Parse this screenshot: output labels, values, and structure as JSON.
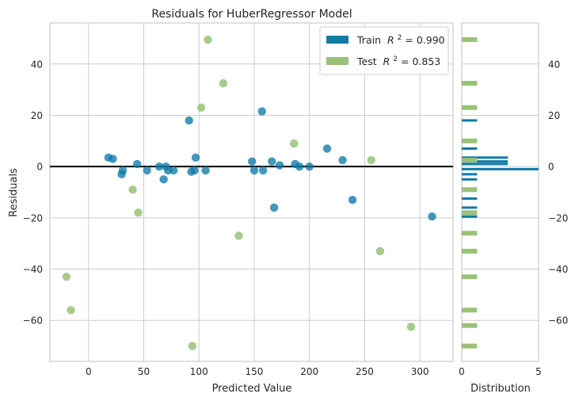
{
  "chart_data": [
    {
      "type": "scatter",
      "title": "Residuals for HuberRegressor Model",
      "xlabel": "Predicted Value",
      "ylabel": "Residuals",
      "xlim": [
        -35,
        330
      ],
      "ylim": [
        -76,
        56
      ],
      "xticks": [
        "0",
        "50",
        "100",
        "150",
        "200",
        "250",
        "300"
      ],
      "xtick_values": [
        0,
        50,
        100,
        150,
        200,
        250,
        300
      ],
      "yticks": [
        "40",
        "20",
        "0",
        "−20",
        "−40",
        "−60"
      ],
      "ytick_values": [
        40,
        20,
        0,
        -20,
        -40,
        -60
      ],
      "grid": true,
      "legend_position": "top-right",
      "zero_line": 0,
      "colors": {
        "train": "#0e7aa8",
        "test": "#99c278",
        "zero_line": "#000000",
        "grid": "#cccccc",
        "axis": "#cccccc"
      },
      "series": [
        {
          "name": "Train",
          "legend_math": "R",
          "legend_sup": "2",
          "legend_value": " = 0.990",
          "color": "#0e7aa8",
          "points": [
            [
              18,
              3.5
            ],
            [
              22,
              3
            ],
            [
              30,
              -3
            ],
            [
              31,
              -1.5
            ],
            [
              44,
              1
            ],
            [
              53,
              -1.5
            ],
            [
              64,
              0
            ],
            [
              68,
              -5
            ],
            [
              70,
              0
            ],
            [
              72,
              -1.5
            ],
            [
              77,
              -1.5
            ],
            [
              91,
              18
            ],
            [
              93,
              -2
            ],
            [
              97,
              3.5
            ],
            [
              96,
              -1.5
            ],
            [
              106,
              -1.5
            ],
            [
              148,
              2
            ],
            [
              150,
              -1.5
            ],
            [
              157,
              21.5
            ],
            [
              158,
              -1.5
            ],
            [
              166,
              2
            ],
            [
              168,
              -16
            ],
            [
              173,
              0.5
            ],
            [
              187,
              1
            ],
            [
              191,
              0
            ],
            [
              200,
              0
            ],
            [
              216,
              7
            ],
            [
              230,
              2.5
            ],
            [
              239,
              -13
            ],
            [
              311,
              -19.5
            ]
          ]
        },
        {
          "name": "Test",
          "legend_math": "R",
          "legend_sup": "2",
          "legend_value": " = 0.853",
          "color": "#99c278",
          "points": [
            [
              -20,
              -43
            ],
            [
              -16,
              -56
            ],
            [
              40,
              -9
            ],
            [
              45,
              -18
            ],
            [
              94,
              -70
            ],
            [
              102,
              23
            ],
            [
              108,
              49.5
            ],
            [
              122,
              32.5
            ],
            [
              136,
              -27
            ],
            [
              186,
              9
            ],
            [
              256,
              2.5
            ],
            [
              264,
              -33
            ],
            [
              292,
              -62.5
            ]
          ]
        }
      ]
    },
    {
      "type": "bar",
      "xlabel": "Distribution",
      "xlim": [
        0,
        5
      ],
      "xticks": [
        "0",
        "5"
      ],
      "xtick_values": [
        0,
        5
      ],
      "ylim": [
        -76,
        56
      ],
      "yticks": [
        "40",
        "20",
        "0",
        "−20",
        "−40",
        "−60"
      ],
      "ytick_values": [
        40,
        20,
        0,
        -20,
        -40,
        -60
      ],
      "orientation": "horizontal",
      "series": [
        {
          "name": "Train",
          "color": "#0e7aa8",
          "bins": [
            [
              18,
              1
            ],
            [
              7,
              1
            ],
            [
              3.5,
              3
            ],
            [
              2,
              3
            ],
            [
              1,
              3
            ],
            [
              -1,
              5
            ],
            [
              -3,
              1
            ],
            [
              -5,
              1
            ],
            [
              -12.5,
              1
            ],
            [
              -16,
              1
            ],
            [
              -19.5,
              1
            ]
          ]
        },
        {
          "name": "Test",
          "color": "#99c278",
          "bins": [
            [
              49.5,
              1
            ],
            [
              32.5,
              1
            ],
            [
              23,
              1
            ],
            [
              10,
              1
            ],
            [
              2.5,
              1
            ],
            [
              -9,
              1
            ],
            [
              -18,
              1
            ],
            [
              -26,
              1
            ],
            [
              -33,
              1
            ],
            [
              -43,
              1
            ],
            [
              -56,
              1
            ],
            [
              -62,
              1
            ],
            [
              -70,
              1
            ]
          ]
        }
      ]
    }
  ]
}
